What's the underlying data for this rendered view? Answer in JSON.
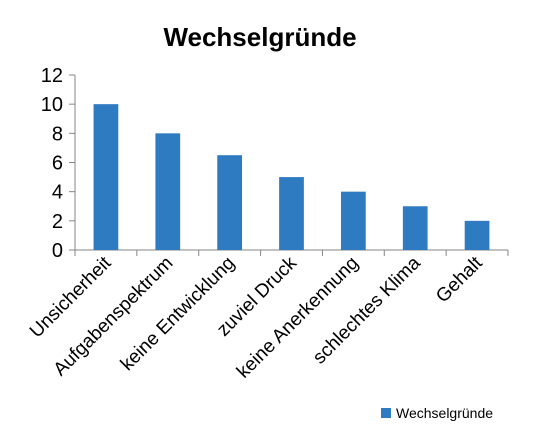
{
  "chart_data": {
    "type": "bar",
    "title": "Wechselgründe",
    "categories": [
      "Unsicherheit",
      "Aufgabenspektrum",
      "keine Entwicklung",
      "zuviel Druck",
      "keine Anerkennung",
      "schlechtes Klima",
      "Gehalt"
    ],
    "series": [
      {
        "name": "Wechselgründe",
        "values": [
          10,
          8,
          6.5,
          5,
          4,
          3,
          2
        ]
      }
    ],
    "ylim": [
      0,
      12
    ],
    "yticks": [
      "0",
      "2",
      "4",
      "6",
      "8",
      "10",
      "12"
    ],
    "grid": false,
    "legend_position": "bottom-right",
    "bar_color": "#2F7BC1"
  }
}
